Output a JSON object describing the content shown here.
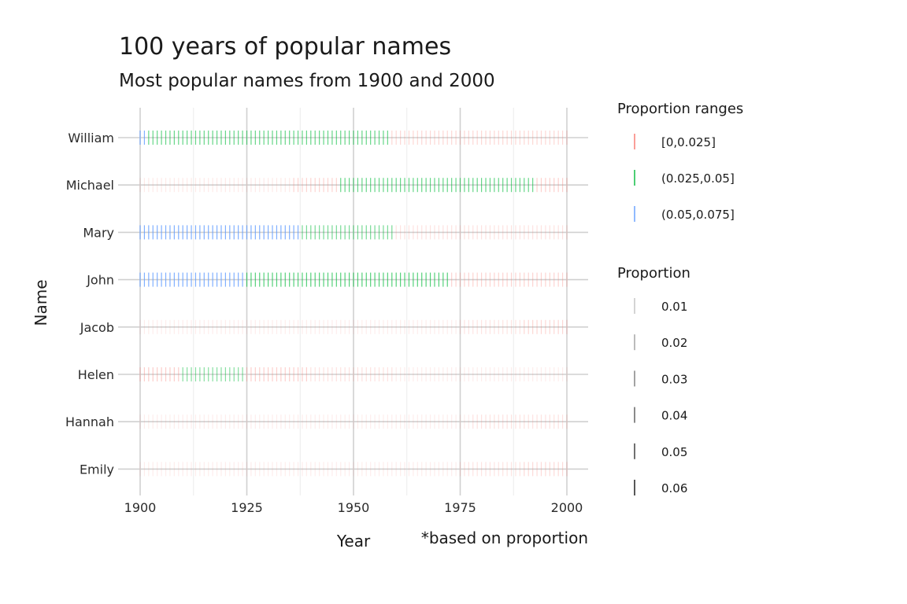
{
  "chart_data": {
    "type": "strip",
    "title": "100 years of popular names",
    "subtitle": "Most popular names from 1900 and 2000",
    "xlabel": "Year",
    "ylabel": "Name",
    "caption": "*based on proportion",
    "xlim": [
      1900,
      2000
    ],
    "x_ticks": [
      "1900",
      "1925",
      "1950",
      "1975",
      "2000"
    ],
    "names": [
      "William",
      "Michael",
      "Mary",
      "John",
      "Jacob",
      "Helen",
      "Hannah",
      "Emily"
    ],
    "range_legend": {
      "title": "Proportion ranges",
      "items": [
        {
          "label": "[0,0.025]",
          "color": "#F8766D"
        },
        {
          "label": "(0.025,0.05]",
          "color": "#00BA38"
        },
        {
          "label": "(0.05,0.075]",
          "color": "#619CFF"
        }
      ]
    },
    "alpha_legend": {
      "title": "Proportion",
      "items": [
        "0.01",
        "0.02",
        "0.03",
        "0.04",
        "0.05",
        "0.06"
      ]
    },
    "series": [
      {
        "name": "William",
        "segments": [
          [
            1900,
            1901,
            "(0.05,0.075]",
            0.055
          ],
          [
            1902,
            1958,
            "(0.025,0.05]",
            0.04
          ],
          [
            1959,
            2000,
            "[0,0.025]",
            0.016
          ]
        ]
      },
      {
        "name": "Michael",
        "segments": [
          [
            1900,
            1935,
            "[0,0.025]",
            0.006
          ],
          [
            1936,
            1946,
            "[0,0.025]",
            0.018
          ],
          [
            1947,
            1992,
            "(0.025,0.05]",
            0.04
          ],
          [
            1993,
            2000,
            "[0,0.025]",
            0.02
          ]
        ]
      },
      {
        "name": "Mary",
        "segments": [
          [
            1900,
            1937,
            "(0.05,0.075]",
            0.056
          ],
          [
            1938,
            1959,
            "(0.025,0.05]",
            0.035
          ],
          [
            1960,
            2000,
            "[0,0.025]",
            0.01
          ]
        ]
      },
      {
        "name": "John",
        "segments": [
          [
            1900,
            1924,
            "(0.05,0.075]",
            0.055
          ],
          [
            1925,
            1972,
            "(0.025,0.05]",
            0.045
          ],
          [
            1973,
            2000,
            "[0,0.025]",
            0.018
          ]
        ]
      },
      {
        "name": "Jacob",
        "segments": [
          [
            1900,
            1974,
            "[0,0.025]",
            0.004
          ],
          [
            1975,
            1989,
            "[0,0.025]",
            0.009
          ],
          [
            1990,
            2000,
            "[0,0.025]",
            0.016
          ]
        ]
      },
      {
        "name": "Helen",
        "segments": [
          [
            1900,
            1909,
            "[0,0.025]",
            0.022
          ],
          [
            1910,
            1924,
            "(0.025,0.05]",
            0.03
          ],
          [
            1925,
            1939,
            "[0,0.025]",
            0.02
          ],
          [
            1940,
            1959,
            "[0,0.025]",
            0.01
          ],
          [
            1960,
            2000,
            "[0,0.025]",
            0.004
          ]
        ]
      },
      {
        "name": "Hannah",
        "segments": [
          [
            1900,
            1977,
            "[0,0.025]",
            0.004
          ],
          [
            1978,
            2000,
            "[0,0.025]",
            0.01
          ]
        ]
      },
      {
        "name": "Emily",
        "segments": [
          [
            1900,
            1974,
            "[0,0.025]",
            0.004
          ],
          [
            1975,
            1989,
            "[0,0.025]",
            0.009
          ],
          [
            1990,
            2000,
            "[0,0.025]",
            0.014
          ]
        ]
      }
    ]
  }
}
